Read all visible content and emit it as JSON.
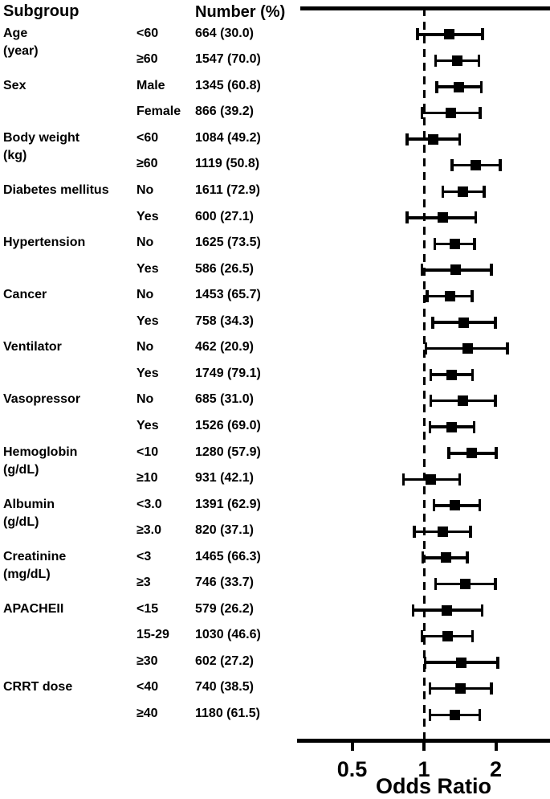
{
  "header": {
    "subgroup": "Subgroup",
    "number": "Number (%)"
  },
  "colors": {
    "foreground": "#000000",
    "background": "#ffffff"
  },
  "chart_data": {
    "type": "forest",
    "title": "",
    "xlabel": "Odds Ratio",
    "scale": "log",
    "reference_line": 1,
    "axis_ticks": [
      {
        "label": "0.5",
        "value": 0.5
      },
      {
        "label": "1",
        "value": 1
      },
      {
        "label": "2",
        "value": 2
      }
    ],
    "xlim": [
      0.35,
      2.8
    ],
    "rows": [
      {
        "group": "Age",
        "group2": "(year)",
        "category": "<60",
        "number": "664 (30.0)",
        "or": 1.28,
        "lo": 0.94,
        "hi": 1.76
      },
      {
        "group": "",
        "group2": "",
        "category": "≥60",
        "number": "1547 (70.0)",
        "or": 1.38,
        "lo": 1.12,
        "hi": 1.7
      },
      {
        "group": "Sex",
        "group2": "",
        "category": "Male",
        "number": "1345 (60.8)",
        "or": 1.4,
        "lo": 1.13,
        "hi": 1.74
      },
      {
        "group": "",
        "group2": "",
        "category": "Female",
        "number": "866 (39.2)",
        "or": 1.3,
        "lo": 0.98,
        "hi": 1.72
      },
      {
        "group": "Body weight",
        "group2": "(kg)",
        "category": "<60",
        "number": "1084 (49.2)",
        "or": 1.09,
        "lo": 0.85,
        "hi": 1.41
      },
      {
        "group": "",
        "group2": "",
        "category": "≥60",
        "number": "1119 (50.8)",
        "or": 1.65,
        "lo": 1.31,
        "hi": 2.09
      },
      {
        "group": "Diabetes mellitus",
        "group2": "",
        "category": "No",
        "number": "1611 (72.9)",
        "or": 1.46,
        "lo": 1.2,
        "hi": 1.79
      },
      {
        "group": "",
        "group2": "",
        "category": "Yes",
        "number": "600 (27.1)",
        "or": 1.2,
        "lo": 0.85,
        "hi": 1.65
      },
      {
        "group": "Hypertension",
        "group2": "",
        "category": "No",
        "number": "1625 (73.5)",
        "or": 1.35,
        "lo": 1.11,
        "hi": 1.63
      },
      {
        "group": "",
        "group2": "",
        "category": "Yes",
        "number": "586 (26.5)",
        "or": 1.36,
        "lo": 0.98,
        "hi": 1.92
      },
      {
        "group": "Cancer",
        "group2": "",
        "category": "No",
        "number": "1453 (65.7)",
        "or": 1.29,
        "lo": 1.03,
        "hi": 1.59
      },
      {
        "group": "",
        "group2": "",
        "category": "Yes",
        "number": "758 (34.3)",
        "or": 1.47,
        "lo": 1.09,
        "hi": 1.99
      },
      {
        "group": "Ventilator",
        "group2": "",
        "category": "No",
        "number": "462 (20.9)",
        "or": 1.52,
        "lo": 1.02,
        "hi": 2.24
      },
      {
        "group": "",
        "group2": "",
        "category": "Yes",
        "number": "1749 (79.1)",
        "or": 1.31,
        "lo": 1.07,
        "hi": 1.6
      },
      {
        "group": "Vasopressor",
        "group2": "",
        "category": "No",
        "number": "685 (31.0)",
        "or": 1.46,
        "lo": 1.07,
        "hi": 1.99
      },
      {
        "group": "",
        "group2": "",
        "category": "Yes",
        "number": "1526 (69.0)",
        "or": 1.31,
        "lo": 1.06,
        "hi": 1.62
      },
      {
        "group": "Hemoglobin",
        "group2": "(g/dL)",
        "category": "<10",
        "number": "1280 (57.9)",
        "or": 1.59,
        "lo": 1.27,
        "hi": 2.01
      },
      {
        "group": "",
        "group2": "",
        "category": "≥10",
        "number": "931 (42.1)",
        "or": 1.07,
        "lo": 0.82,
        "hi": 1.41
      },
      {
        "group": "Albumin",
        "group2": "(g/dL)",
        "category": "<3.0",
        "number": "1391 (62.9)",
        "or": 1.35,
        "lo": 1.1,
        "hi": 1.71
      },
      {
        "group": "",
        "group2": "",
        "category": "≥3.0",
        "number": "820 (37.1)",
        "or": 1.2,
        "lo": 0.91,
        "hi": 1.57
      },
      {
        "group": "Creatinine",
        "group2": "(mg/dL)",
        "category": "<3",
        "number": "1465 (66.3)",
        "or": 1.24,
        "lo": 0.99,
        "hi": 1.52
      },
      {
        "group": "",
        "group2": "",
        "category": "≥3",
        "number": "746 (33.7)",
        "or": 1.49,
        "lo": 1.12,
        "hi": 1.99
      },
      {
        "group": "APACHEII",
        "group2": "",
        "category": "<15",
        "number": "579 (26.2)",
        "or": 1.25,
        "lo": 0.9,
        "hi": 1.75
      },
      {
        "group": "",
        "group2": "",
        "category": "15-29",
        "number": "1030 (46.6)",
        "or": 1.26,
        "lo": 0.98,
        "hi": 1.6
      },
      {
        "group": "",
        "group2": "",
        "category": "≥30",
        "number": "602 (27.2)",
        "or": 1.43,
        "lo": 1.01,
        "hi": 2.04
      },
      {
        "group": "CRRT dose",
        "group2": "",
        "category": "<40",
        "number": "740 (38.5)",
        "or": 1.42,
        "lo": 1.06,
        "hi": 1.92
      },
      {
        "group": "",
        "group2": "",
        "category": "≥40",
        "number": "1180 (61.5)",
        "or": 1.35,
        "lo": 1.06,
        "hi": 1.71
      }
    ]
  }
}
